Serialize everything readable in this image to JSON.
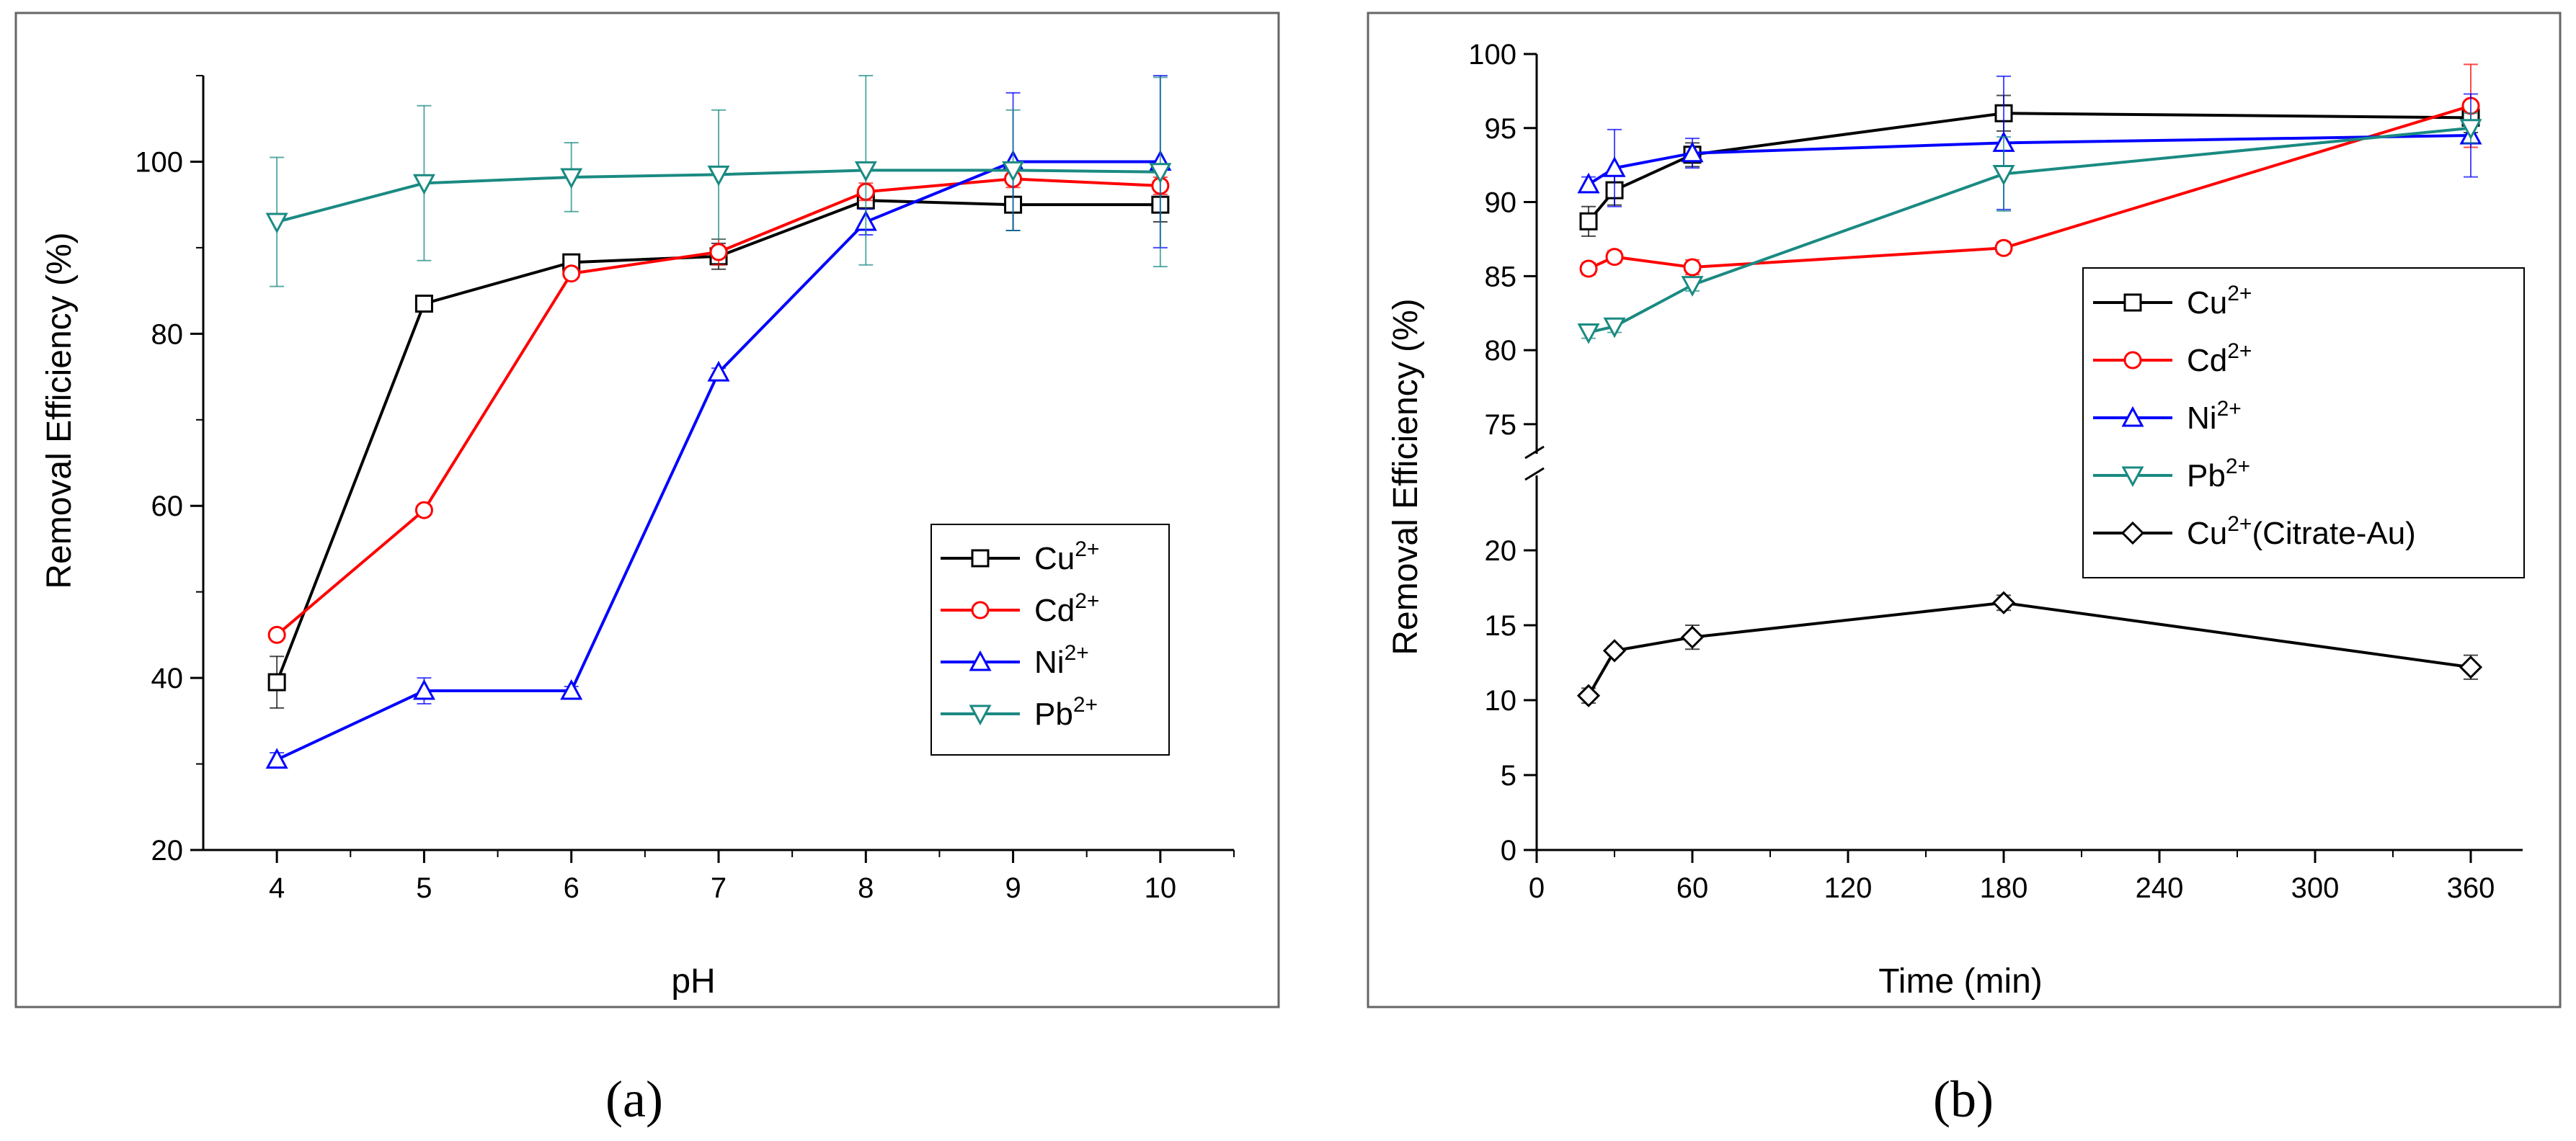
{
  "chart_data": [
    {
      "type": "line",
      "panel_label": "(a)",
      "xlabel": "pH",
      "ylabel": "Removal Efficiency (%)",
      "xlim": [
        3.5,
        10.5
      ],
      "ylim": [
        20,
        110
      ],
      "xticks": [
        4,
        5,
        6,
        7,
        8,
        9,
        10
      ],
      "yticks": [
        20,
        40,
        60,
        80,
        100
      ],
      "series": [
        {
          "name": "Cu",
          "charge": "2+",
          "color": "#000000",
          "marker": "square",
          "x": [
            4,
            5,
            6,
            7,
            8,
            9,
            10
          ],
          "y": [
            39.5,
            83.5,
            88.3,
            89.0,
            95.5,
            95.0,
            95.0
          ],
          "err": [
            3,
            0.5,
            0.8,
            1.5,
            1,
            3,
            2
          ]
        },
        {
          "name": "Cd",
          "charge": "2+",
          "color": "#ff0000",
          "marker": "circle",
          "x": [
            4,
            5,
            6,
            7,
            8,
            9,
            10
          ],
          "y": [
            45.0,
            59.5,
            87.0,
            89.5,
            96.5,
            98.0,
            97.2
          ],
          "err": [
            0.5,
            0.5,
            0.5,
            1.5,
            1,
            1,
            1
          ]
        },
        {
          "name": "Ni",
          "charge": "2+",
          "color": "#0000ff",
          "marker": "triangle-up",
          "x": [
            4,
            5,
            6,
            7,
            8,
            9,
            10
          ],
          "y": [
            30.5,
            38.5,
            38.5,
            75.5,
            93.0,
            100.0,
            100.0
          ],
          "err": [
            0.8,
            1.5,
            0.5,
            0.5,
            1.5,
            8,
            10
          ]
        },
        {
          "name": "Pb",
          "charge": "2+",
          "color": "#1a8a82",
          "marker": "triangle-down",
          "x": [
            4,
            5,
            6,
            7,
            8,
            9,
            10
          ],
          "y": [
            93.0,
            97.5,
            98.2,
            98.5,
            99.0,
            99.0,
            98.8
          ],
          "err": [
            7.5,
            9,
            4,
            7.5,
            11,
            7,
            11
          ]
        }
      ],
      "legend": {
        "position": "bottom-right",
        "entries": [
          "Cu",
          "Cd",
          "Ni",
          "Pb"
        ],
        "superscript": "2+"
      }
    },
    {
      "type": "line",
      "panel_label": "(b)",
      "xlabel": "Time (min)",
      "ylabel": "Removal Efficiency (%)",
      "xlim": [
        0,
        380
      ],
      "xticks": [
        0,
        60,
        120,
        180,
        240,
        300,
        360
      ],
      "axis_break": {
        "lower": [
          0,
          25
        ],
        "upper": [
          73,
          100
        ]
      },
      "yticks_lower": [
        0,
        5,
        10,
        15,
        20
      ],
      "yticks_upper": [
        75,
        80,
        85,
        90,
        95,
        100
      ],
      "series": [
        {
          "name": "Cu",
          "charge": "2+",
          "suffix": "",
          "color": "#000000",
          "marker": "square",
          "x": [
            20,
            30,
            60,
            180,
            360
          ],
          "y": [
            88.7,
            90.8,
            93.2,
            96.0,
            95.7
          ],
          "err": [
            1.0,
            1.0,
            0.8,
            1.2,
            1.0
          ]
        },
        {
          "name": "Cd",
          "charge": "2+",
          "suffix": "",
          "color": "#ff0000",
          "marker": "circle",
          "x": [
            20,
            30,
            60,
            180,
            360
          ],
          "y": [
            85.5,
            86.3,
            85.6,
            86.9,
            96.5
          ],
          "err": [
            0.4,
            0.4,
            0.5,
            0.4,
            2.8
          ]
        },
        {
          "name": "Ni",
          "charge": "2+",
          "suffix": "",
          "color": "#0000ff",
          "marker": "triangle-up",
          "x": [
            20,
            30,
            60,
            180,
            360
          ],
          "y": [
            91.2,
            92.3,
            93.3,
            94.0,
            94.5
          ],
          "err": [
            0.5,
            2.6,
            1.0,
            4.5,
            2.8
          ]
        },
        {
          "name": "Pb",
          "charge": "2+",
          "suffix": "",
          "color": "#1a8a82",
          "marker": "triangle-down",
          "x": [
            20,
            30,
            60,
            180,
            360
          ],
          "y": [
            81.2,
            81.6,
            84.4,
            91.9,
            95.0
          ],
          "err": [
            0.4,
            0.4,
            0.4,
            2.5,
            1.0
          ]
        },
        {
          "name": "Cu",
          "charge": "2+",
          "suffix": "(Citrate-Au)",
          "color": "#000000",
          "marker": "diamond",
          "x": [
            20,
            30,
            60,
            180,
            360
          ],
          "y": [
            10.3,
            13.3,
            14.2,
            16.5,
            12.2
          ],
          "err": [
            0.5,
            0.3,
            0.8,
            0.5,
            0.8
          ]
        }
      ],
      "legend": {
        "position": "right",
        "entries": [
          "Cu",
          "Cd",
          "Ni",
          "Pb",
          "Cu(Citrate-Au)"
        ],
        "superscript": "2+"
      }
    }
  ]
}
